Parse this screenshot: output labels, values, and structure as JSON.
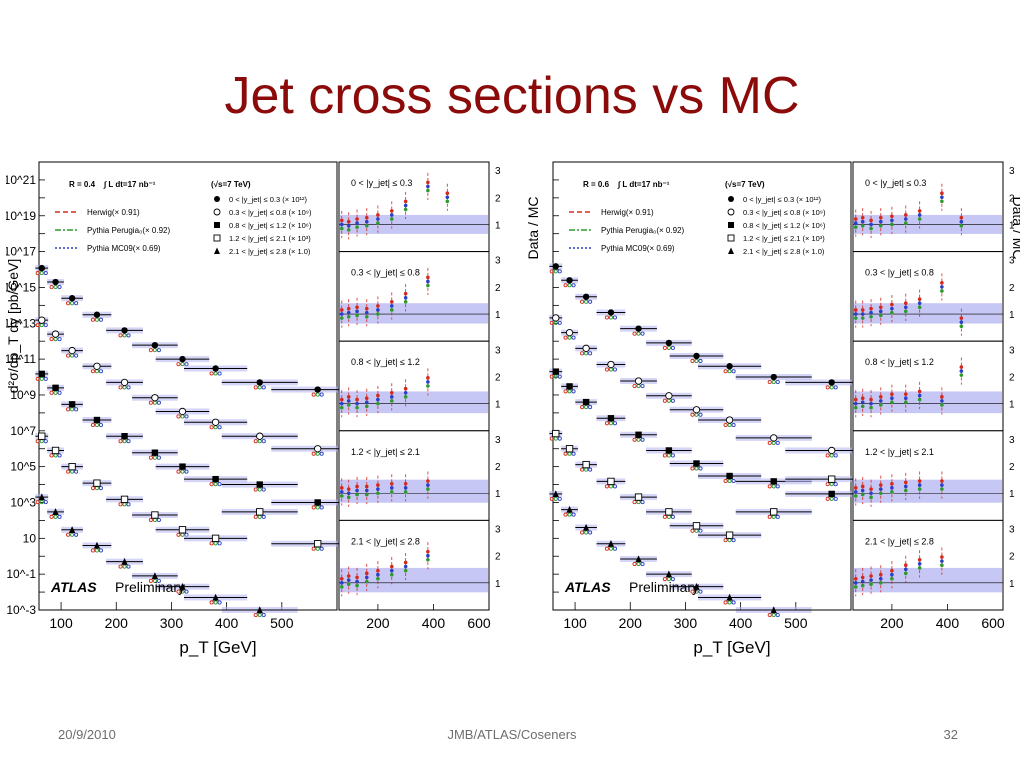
{
  "slide": {
    "title": "Jet cross sections vs MC",
    "footer_date": "20/9/2010",
    "footer_center": "JMB/ATLAS/Coseners",
    "page_number": "32"
  },
  "colors": {
    "title": "#8b0a0a",
    "herwig": "#d42a1e",
    "pythia_perugia": "#2e9a2e",
    "pythia_mc09": "#2b40c4",
    "systematic_band": "#b9b9f2",
    "data": "#000000"
  },
  "chart_data": [
    {
      "type": "scatter",
      "y_scale": "log",
      "ylabel": "d²σ/dp_T dy [pb/GeV]",
      "xlabel": "p_T [GeV]",
      "ratio_label": "Data / MC",
      "xlim": [
        60,
        600
      ],
      "ylim": [
        0.001,
        1e+22
      ],
      "ratio_ylim": [
        0,
        3.3
      ],
      "ratio_xlim": [
        60,
        600
      ],
      "y_tick_labels": [
        "10^21",
        "10^19",
        "10^17",
        "10^15",
        "10^13",
        "10^11",
        "10^9",
        "10^7",
        "10^5",
        "10^3",
        "10",
        "10^-1",
        "10^-3"
      ],
      "x_tick_labels": [
        "100",
        "200",
        "300",
        "400",
        "500"
      ],
      "ratio_x_tick_labels": [
        "200",
        "400",
        "600"
      ],
      "ratio_y_tick_labels": [
        "1",
        "2",
        "3"
      ],
      "legend_left": [
        "R = 0.4",
        "∫ L dt=17 nb⁻¹",
        "Herwig(× 0.91)",
        "Pythia Perugia₀(× 0.92)",
        "Pythia MC09(× 0.69)"
      ],
      "legend_right": [
        "(√s=7 TeV)",
        "0 < |y_jet| ≤ 0.3 (× 10¹²)",
        "0.3 < |y_jet| ≤ 0.8 (× 10⁹)",
        "0.8 < |y_jet| ≤ 1.2 (× 10⁶)",
        "1.2 < |y_jet| ≤ 2.1 (× 10³)",
        "2.1 < |y_jet| ≤ 2.8 (× 1.0)"
      ],
      "atlas_label": "ATLAS",
      "preliminary_label": "Preliminary",
      "series": [
        {
          "name": "0 < |y_jet| ≤ 0.3 (× 10¹²)",
          "marker": "filled-circle",
          "x": [
            65,
            90,
            120,
            165,
            215,
            270,
            320,
            380,
            460,
            565
          ],
          "y": [
            1.2e+16,
            2000000000000000.0,
            250000000000000.0,
            30000000000000.0,
            4000000000000.0,
            600000000000.0,
            100000000000.0,
            30000000000.0,
            5000000000.0,
            2000000000.0
          ]
        },
        {
          "name": "0.3 < |y_jet| ≤ 0.8 (× 10⁹)",
          "marker": "open-circle",
          "x": [
            65,
            90,
            120,
            165,
            215,
            270,
            320,
            380,
            460,
            565
          ],
          "y": [
            15000000000000.0,
            2500000000000.0,
            300000000000.0,
            40000000000.0,
            5000000000.0,
            700000000.0,
            120000000.0,
            30000000.0,
            5000000.0,
            1000000.0
          ]
        },
        {
          "name": "0.8 < |y_jet| ≤ 1.2 (× 10⁶)",
          "marker": "filled-square",
          "x": [
            65,
            90,
            120,
            165,
            215,
            270,
            320,
            380,
            460,
            565
          ],
          "y": [
            15000000000.0,
            2500000000.0,
            300000000.0,
            40000000.0,
            5000000.0,
            600000.0,
            100000.0,
            20000.0,
            10000.0,
            1000.0
          ]
        },
        {
          "name": "1.2 < |y_jet| ≤ 2.1 (× 10³)",
          "marker": "open-square",
          "x": [
            65,
            90,
            120,
            165,
            215,
            270,
            320,
            380,
            460,
            565
          ],
          "y": [
            5000000.0,
            800000.0,
            100000.0,
            12000.0,
            1500.0,
            200.0,
            30.0,
            10.0,
            300.0,
            5.0
          ]
        },
        {
          "name": "2.1 < |y_jet| ≤ 2.8 (× 1.0)",
          "marker": "filled-triangle",
          "x": [
            65,
            90,
            120,
            165,
            215,
            270,
            320,
            380,
            460
          ],
          "y": [
            2000.0,
            300.0,
            30.0,
            4.0,
            0.5,
            0.08,
            0.02,
            0.005,
            0.001
          ]
        }
      ],
      "ratio_panels": [
        {
          "label": "0 < |y_jet| ≤ 0.3",
          "x": [
            70,
            95,
            125,
            160,
            200,
            250,
            300,
            380,
            450
          ],
          "y": [
            1.0,
            0.95,
            1.05,
            1.1,
            1.2,
            1.35,
            1.7,
            2.4,
            2.0
          ]
        },
        {
          "label": "0.3 < |y_jet| ≤ 0.8",
          "x": [
            70,
            95,
            125,
            160,
            200,
            250,
            300,
            380
          ],
          "y": [
            1.0,
            1.05,
            1.1,
            1.05,
            1.15,
            1.3,
            1.6,
            2.2
          ]
        },
        {
          "label": "0.8 < |y_jet| ≤ 1.2",
          "x": [
            70,
            95,
            125,
            160,
            200,
            250,
            300,
            380
          ],
          "y": [
            1.0,
            1.1,
            1.0,
            1.05,
            1.15,
            1.25,
            1.4,
            1.8
          ]
        },
        {
          "label": "1.2 < |y_jet| ≤ 2.1",
          "x": [
            70,
            95,
            125,
            160,
            200,
            250,
            300,
            380
          ],
          "y": [
            1.05,
            1.0,
            1.1,
            1.1,
            1.15,
            1.2,
            1.2,
            1.3
          ]
        },
        {
          "label": "2.1 < |y_jet| ≤ 2.8",
          "x": [
            70,
            95,
            125,
            160,
            200,
            250,
            300,
            380
          ],
          "y": [
            1.0,
            1.1,
            1.05,
            1.2,
            1.3,
            1.45,
            1.6,
            2.0
          ]
        }
      ]
    },
    {
      "type": "scatter",
      "y_scale": "log",
      "ylabel": "",
      "xlabel": "p_T [GeV]",
      "ratio_label": "Data / MC",
      "xlim": [
        60,
        600
      ],
      "ylim": [
        0.001,
        1e+22
      ],
      "ratio_ylim": [
        0,
        3.3
      ],
      "ratio_xlim": [
        60,
        600
      ],
      "y_tick_labels": [],
      "x_tick_labels": [
        "100",
        "200",
        "300",
        "400",
        "500"
      ],
      "ratio_x_tick_labels": [
        "200",
        "400",
        "600"
      ],
      "ratio_y_tick_labels": [
        "1",
        "2",
        "3"
      ],
      "legend_left": [
        "R = 0.6",
        "∫ L dt=17 nb⁻¹",
        "Herwig(× 0.91)",
        "Pythia Perugia₀(× 0.92)",
        "Pythia MC09(× 0.69)"
      ],
      "legend_right": [
        "(√s=7 TeV)",
        "0 < |y_jet| ≤ 0.3 (× 10¹²)",
        "0.3 < |y_jet| ≤ 0.8 (× 10⁹)",
        "0.8 < |y_jet| ≤ 1.2 (× 10⁶)",
        "1.2 < |y_jet| ≤ 2.1 (× 10³)",
        "2.1 < |y_jet| ≤ 2.8 (× 1.0)"
      ],
      "atlas_label": "ATLAS",
      "preliminary_label": "Preliminary",
      "series": [
        {
          "name": "0 < |y_jet| ≤ 0.3 (× 10¹²)",
          "marker": "filled-circle",
          "x": [
            65,
            90,
            120,
            165,
            215,
            270,
            320,
            380,
            460,
            565
          ],
          "y": [
            1.5e+16,
            2500000000000000.0,
            300000000000000.0,
            40000000000000.0,
            5000000000000.0,
            800000000000.0,
            150000000000.0,
            40000000000.0,
            10000000000.0,
            5000000000.0
          ]
        },
        {
          "name": "0.3 < |y_jet| ≤ 0.8 (× 10⁹)",
          "marker": "open-circle",
          "x": [
            65,
            90,
            120,
            165,
            215,
            270,
            320,
            380,
            460,
            565
          ],
          "y": [
            20000000000000.0,
            3000000000000.0,
            400000000000.0,
            50000000000.0,
            6000000000.0,
            900000000.0,
            150000000.0,
            40000000.0,
            4000000.0,
            800000.0
          ]
        },
        {
          "name": "0.8 < |y_jet| ≤ 1.2 (× 10⁶)",
          "marker": "filled-square",
          "x": [
            65,
            90,
            120,
            165,
            215,
            270,
            320,
            380,
            460,
            565
          ],
          "y": [
            20000000000.0,
            3000000000.0,
            400000000.0,
            50000000.0,
            6000000.0,
            800000.0,
            150000.0,
            30000.0,
            15000.0,
            3000.0
          ]
        },
        {
          "name": "1.2 < |y_jet| ≤ 2.1 (× 10³)",
          "marker": "open-square",
          "x": [
            65,
            90,
            120,
            165,
            215,
            270,
            320,
            380,
            460,
            565
          ],
          "y": [
            7000000.0,
            1000000.0,
            130000.0,
            15000.0,
            2000.0,
            300.0,
            50.0,
            15.0,
            300.0,
            20000.0
          ]
        },
        {
          "name": "2.1 < |y_jet| ≤ 2.8 (× 1.0)",
          "marker": "filled-triangle",
          "x": [
            65,
            90,
            120,
            165,
            215,
            270,
            320,
            380,
            460
          ],
          "y": [
            3000.0,
            400.0,
            40.0,
            5.0,
            0.7,
            0.1,
            0.02,
            0.005,
            0.001
          ]
        }
      ],
      "ratio_panels": [
        {
          "label": "0 < |y_jet| ≤ 0.3",
          "x": [
            70,
            95,
            125,
            160,
            200,
            250,
            300,
            380,
            450
          ],
          "y": [
            1.05,
            1.1,
            1.0,
            1.1,
            1.15,
            1.2,
            1.35,
            2.0,
            1.1
          ]
        },
        {
          "label": "0.3 < |y_jet| ≤ 0.8",
          "x": [
            70,
            95,
            125,
            160,
            200,
            250,
            300,
            380,
            450
          ],
          "y": [
            1.0,
            1.0,
            1.05,
            1.1,
            1.2,
            1.25,
            1.4,
            2.0,
            0.7
          ]
        },
        {
          "label": "0.8 < |y_jet| ≤ 1.2",
          "x": [
            70,
            95,
            125,
            160,
            200,
            250,
            300,
            380,
            450
          ],
          "y": [
            1.0,
            1.05,
            1.0,
            1.1,
            1.2,
            1.2,
            1.3,
            1.1,
            2.2
          ]
        },
        {
          "label": "1.2 < |y_jet| ≤ 2.1",
          "x": [
            70,
            95,
            125,
            160,
            200,
            250,
            300,
            380
          ],
          "y": [
            1.05,
            1.1,
            1.0,
            1.15,
            1.2,
            1.25,
            1.3,
            1.3
          ]
        },
        {
          "label": "2.1 < |y_jet| ≤ 2.8",
          "x": [
            70,
            95,
            125,
            160,
            200,
            250,
            300,
            380
          ],
          "y": [
            1.0,
            1.05,
            1.1,
            1.15,
            1.3,
            1.5,
            1.7,
            1.8
          ]
        }
      ]
    }
  ]
}
